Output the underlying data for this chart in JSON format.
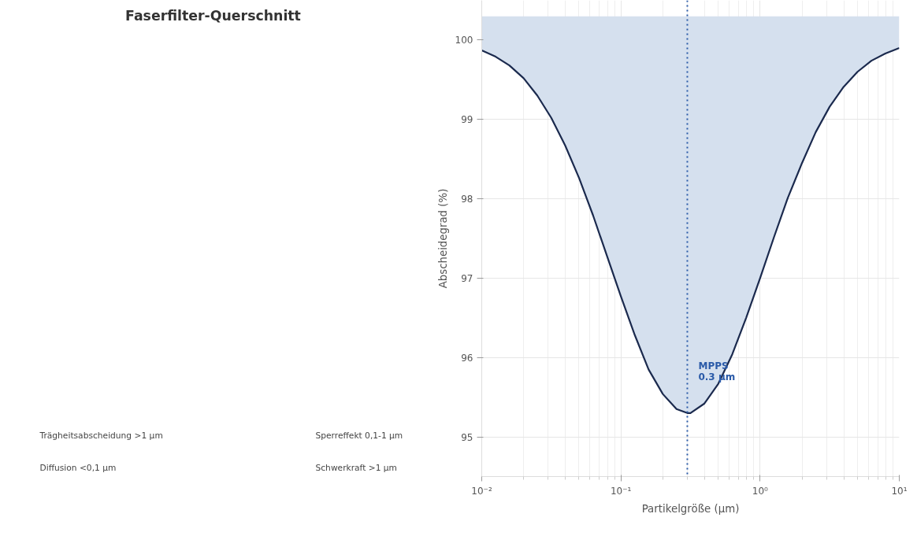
{
  "chart_data": [
    {
      "type": "other",
      "title": "Faserfilter-Querschnitt",
      "annotations": [
        "Trägheitsabscheidung  >1 µm",
        "Sperreffekt  0,1-1 µm",
        "Diffusion  <0,1 µm",
        "Schwerkraft  >1 µm"
      ]
    },
    {
      "type": "line",
      "xlabel": "Partikelgröße (µm)",
      "ylabel": "Abscheidegrad (%)",
      "log": "x",
      "grid": true,
      "xlim": [
        0.01,
        10
      ],
      "xticks": [
        {
          "value": 0.01,
          "label": "10⁻²"
        },
        {
          "value": 0.1,
          "label": "10⁻¹"
        },
        {
          "value": 1,
          "label": "10⁰"
        },
        {
          "value": 10,
          "label": "10¹"
        }
      ],
      "ylim": [
        94.5,
        100.5
      ],
      "yticks": [
        95,
        96,
        97,
        98,
        99,
        100
      ],
      "series": [
        {
          "color": "#1b2a4e",
          "x": [
            0.01,
            0.0126,
            0.0158,
            0.02,
            0.0251,
            0.0316,
            0.0398,
            0.0501,
            0.0631,
            0.0794,
            0.1,
            0.126,
            0.158,
            0.2,
            0.251,
            0.3,
            0.316,
            0.398,
            0.501,
            0.631,
            0.794,
            1,
            1.26,
            1.58,
            2,
            2.51,
            3.16,
            3.98,
            5.01,
            6.31,
            7.94,
            10
          ],
          "values": [
            99.87,
            99.79,
            99.68,
            99.52,
            99.3,
            99.02,
            98.67,
            98.26,
            97.79,
            97.28,
            96.77,
            96.28,
            95.85,
            95.54,
            95.35,
            95.3,
            95.3,
            95.42,
            95.67,
            96.04,
            96.5,
            97.0,
            97.52,
            98.01,
            98.45,
            98.84,
            99.16,
            99.41,
            99.6,
            99.74,
            99.83,
            99.9
          ],
          "lower": [
            99.87,
            99.79,
            99.68,
            99.52,
            99.3,
            99.02,
            98.67,
            98.26,
            97.79,
            97.28,
            96.77,
            96.28,
            95.85,
            95.54,
            95.35,
            95.3,
            95.3,
            95.42,
            95.67,
            96.04,
            96.5,
            97.0,
            97.52,
            98.01,
            98.45,
            98.84,
            99.16,
            99.41,
            99.6,
            99.74,
            99.83,
            99.9
          ],
          "upper": [
            100.3,
            100.3,
            100.3,
            100.3,
            100.3,
            100.3,
            100.3,
            100.3,
            100.3,
            100.3,
            100.3,
            100.3,
            100.3,
            100.3,
            100.3,
            100.3,
            100.3,
            100.3,
            100.3,
            100.3,
            100.3,
            100.3,
            100.3,
            100.3,
            100.3,
            100.3,
            100.3,
            100.3,
            100.3,
            100.3,
            100.3,
            100.3
          ]
        }
      ],
      "ref_lines": [
        {
          "axis": "x",
          "value": 0.3,
          "label": "MPPS\n0.3 µm",
          "color": "#2a5aa8",
          "line_style": "dotted"
        }
      ]
    }
  ]
}
